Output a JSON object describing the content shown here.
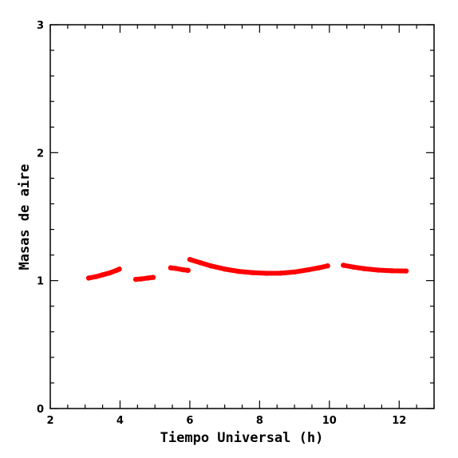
{
  "chart_data": {
    "type": "scatter",
    "xlabel": "Tiempo Universal (h)",
    "ylabel": "Masas de aire",
    "xlim": [
      2,
      13
    ],
    "ylim": [
      0,
      3
    ],
    "x_ticks": [
      2,
      4,
      6,
      8,
      10,
      12
    ],
    "y_ticks": [
      0,
      1,
      2,
      3
    ],
    "x_tick_labels": [
      "2",
      "4",
      "6",
      "8",
      "10",
      "12"
    ],
    "y_tick_labels": [
      "0",
      "1",
      "2",
      "3"
    ],
    "grid": false,
    "marker_color": "#ff0000",
    "segments": [
      {
        "x": [
          3.1,
          3.3,
          3.5,
          3.7,
          3.9,
          3.98
        ],
        "y": [
          1.02,
          1.03,
          1.045,
          1.06,
          1.08,
          1.09
        ]
      },
      {
        "x": [
          4.45,
          4.6,
          4.8,
          4.95
        ],
        "y": [
          1.01,
          1.013,
          1.02,
          1.025
        ]
      },
      {
        "x": [
          5.45,
          5.6,
          5.8,
          5.95
        ],
        "y": [
          1.1,
          1.095,
          1.085,
          1.08
        ]
      },
      {
        "x": [
          6.0,
          6.3,
          6.6,
          7.0,
          7.4,
          7.8,
          8.2,
          8.6,
          9.0,
          9.4,
          9.7,
          9.95
        ],
        "y": [
          1.165,
          1.14,
          1.115,
          1.09,
          1.072,
          1.062,
          1.057,
          1.058,
          1.067,
          1.085,
          1.1,
          1.115
        ]
      },
      {
        "x": [
          10.4,
          10.7,
          11.0,
          11.4,
          11.8,
          12.2
        ],
        "y": [
          1.12,
          1.105,
          1.093,
          1.082,
          1.077,
          1.075
        ]
      }
    ]
  }
}
